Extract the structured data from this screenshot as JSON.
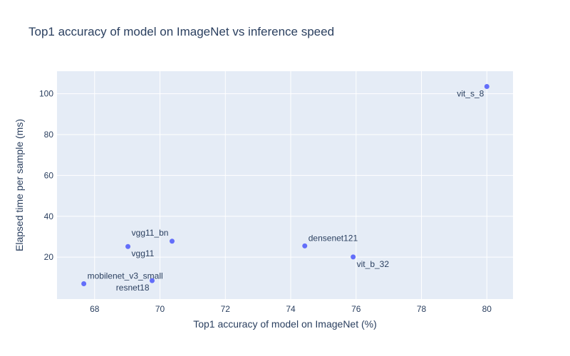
{
  "chart_data": {
    "type": "scatter",
    "title": "Top1 accuracy of model on ImageNet vs inference speed",
    "xlabel": "Top1 accuracy of model on ImageNet (%)",
    "ylabel": "Elapsed time per sample (ms)",
    "xlim": [
      66.85,
      80.8
    ],
    "ylim": [
      -0.5,
      111
    ],
    "xticks": [
      68,
      70,
      72,
      74,
      76,
      78,
      80
    ],
    "yticks": [
      20,
      40,
      60,
      80,
      100
    ],
    "grid": true,
    "legend": "none",
    "point_color": "#636efa",
    "background_color": "#e5ecf6",
    "points": [
      {
        "name": "mobilenet_v3_small",
        "x": 67.67,
        "y": 7.0,
        "label_pos": "top-right"
      },
      {
        "name": "resnet18",
        "x": 69.76,
        "y": 8.5,
        "label_pos": "bottom-left"
      },
      {
        "name": "vgg11",
        "x": 69.02,
        "y": 25.2,
        "label_pos": "bottom-right"
      },
      {
        "name": "vgg11_bn",
        "x": 70.37,
        "y": 27.8,
        "label_pos": "top-left"
      },
      {
        "name": "densenet121",
        "x": 74.43,
        "y": 25.5,
        "label_pos": "top-right"
      },
      {
        "name": "vit_b_32",
        "x": 75.91,
        "y": 20.1,
        "label_pos": "bottom-right"
      },
      {
        "name": "vit_s_8",
        "x": 80.0,
        "y": 103.5,
        "label_pos": "bottom-left"
      }
    ]
  }
}
